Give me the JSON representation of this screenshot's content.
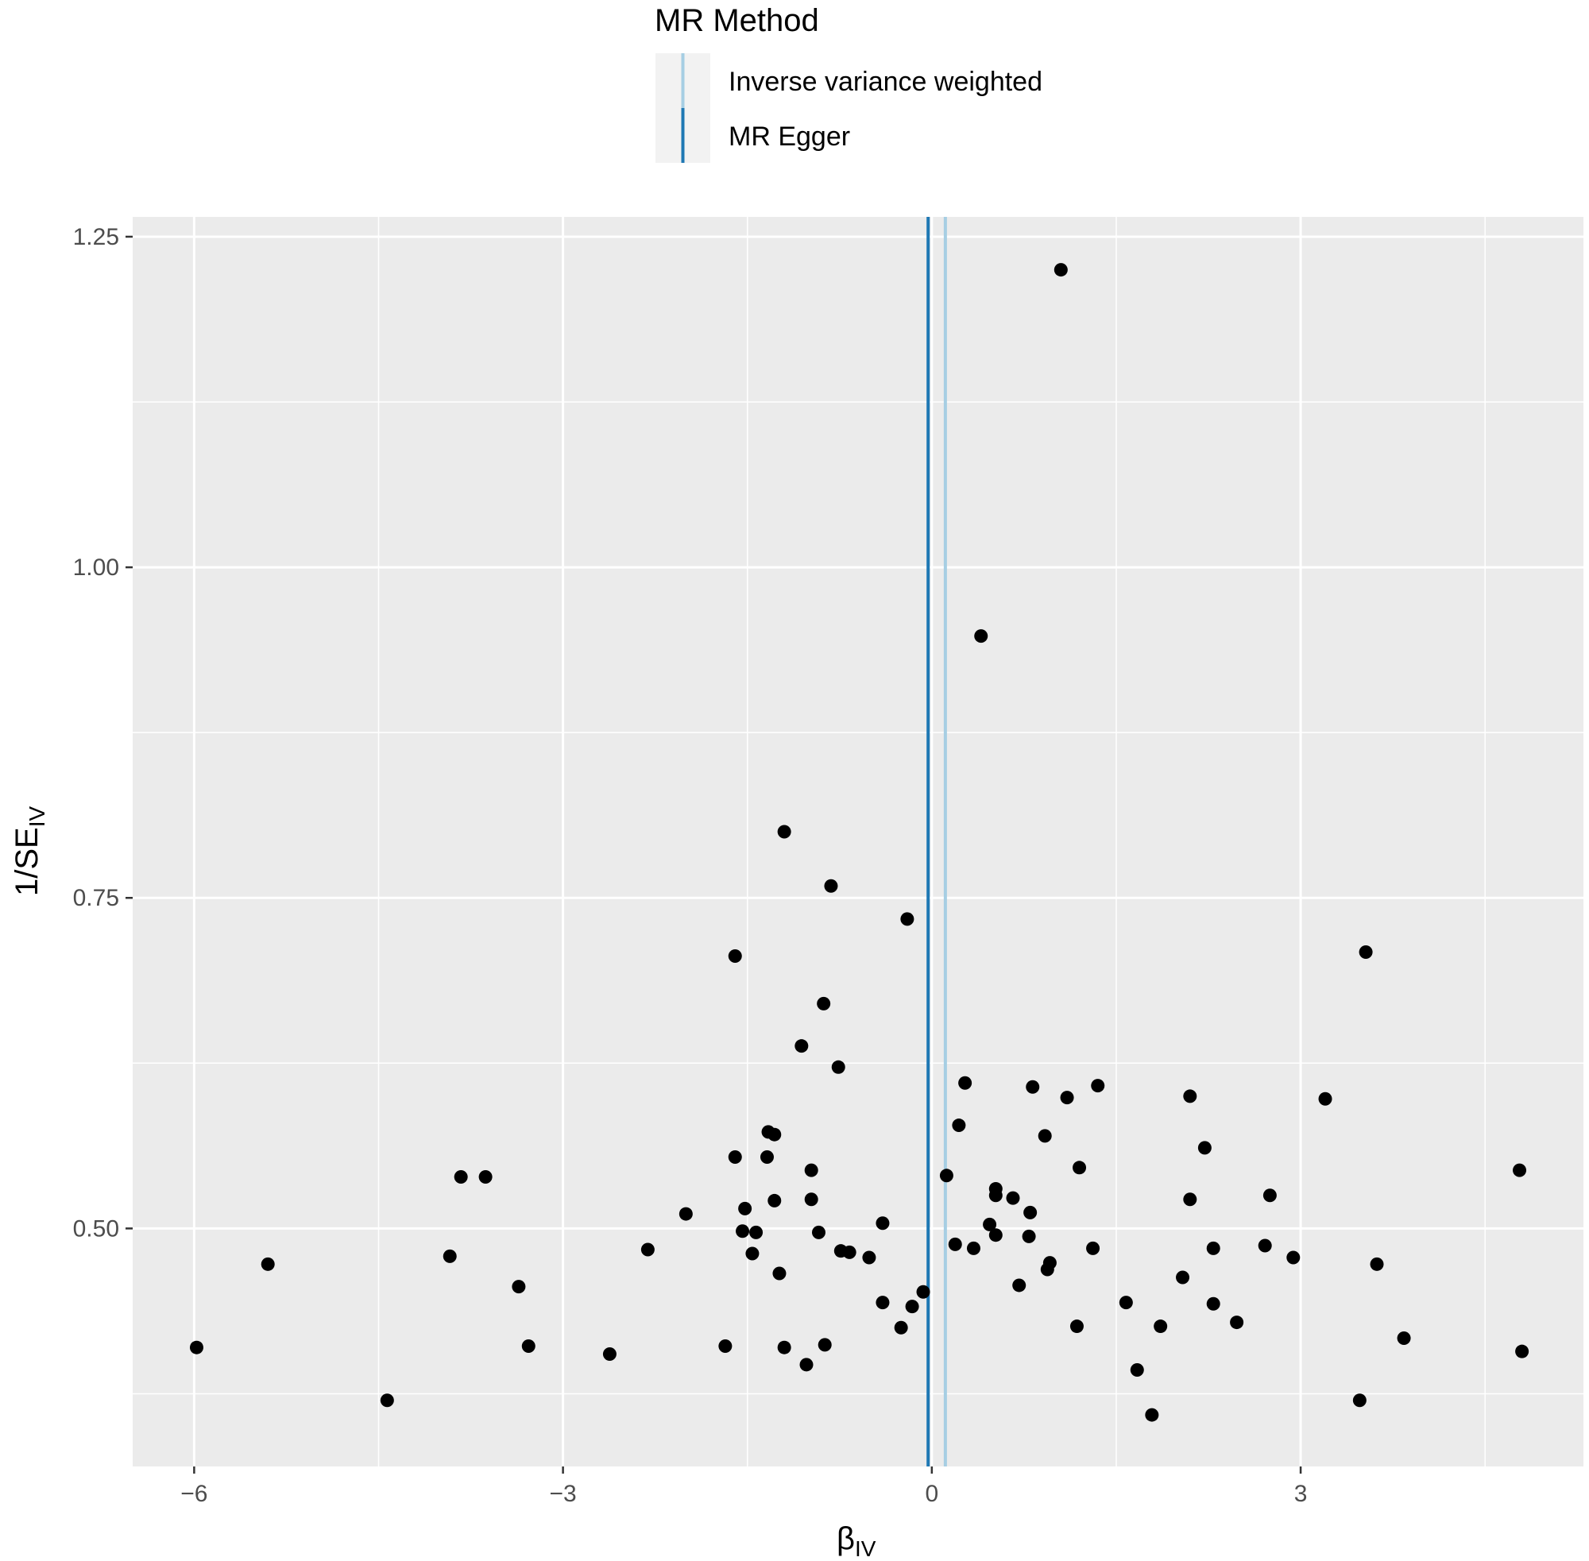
{
  "legend": {
    "title": "MR Method",
    "items": [
      {
        "label": "Inverse variance weighted",
        "color": "#a6cee3"
      },
      {
        "label": "MR Egger",
        "color": "#1f78b4"
      }
    ]
  },
  "chart_data": {
    "type": "scatter",
    "xlabel": {
      "main": "β",
      "sub": "IV"
    },
    "ylabel": {
      "main": "1/SE",
      "sub": "IV"
    },
    "xlim": [
      -6.5,
      5.3
    ],
    "ylim": [
      0.32,
      1.265
    ],
    "x_ticks": [
      -6,
      -3,
      0,
      3
    ],
    "x_tick_labels": [
      "−6",
      "−3",
      "0",
      "3"
    ],
    "y_ticks": [
      0.5,
      0.75,
      1.0,
      1.25
    ],
    "y_tick_labels": [
      "0.50",
      "0.75",
      "1.00",
      "1.25"
    ],
    "grid": true,
    "legend_position": "top",
    "background": "#ebebeb",
    "point_color": "#000000",
    "vlines": [
      {
        "name": "Inverse variance weighted",
        "x": 0.11,
        "color": "#a6cee3"
      },
      {
        "name": "MR Egger",
        "x": -0.03,
        "color": "#1f78b4"
      }
    ],
    "points": [
      {
        "x": 1.05,
        "y": 1.225
      },
      {
        "x": 0.4,
        "y": 0.948
      },
      {
        "x": -1.2,
        "y": 0.8
      },
      {
        "x": -0.82,
        "y": 0.759
      },
      {
        "x": -0.2,
        "y": 0.734
      },
      {
        "x": -1.6,
        "y": 0.706
      },
      {
        "x": 3.53,
        "y": 0.709
      },
      {
        "x": -0.88,
        "y": 0.67
      },
      {
        "x": -1.06,
        "y": 0.638
      },
      {
        "x": -0.76,
        "y": 0.622
      },
      {
        "x": 0.27,
        "y": 0.61
      },
      {
        "x": 0.82,
        "y": 0.607
      },
      {
        "x": 1.35,
        "y": 0.608
      },
      {
        "x": 1.1,
        "y": 0.599
      },
      {
        "x": 2.1,
        "y": 0.6
      },
      {
        "x": 3.2,
        "y": 0.598
      },
      {
        "x": 0.22,
        "y": 0.578
      },
      {
        "x": -1.33,
        "y": 0.573
      },
      {
        "x": -1.28,
        "y": 0.571
      },
      {
        "x": 0.92,
        "y": 0.57
      },
      {
        "x": 2.22,
        "y": 0.561
      },
      {
        "x": -1.6,
        "y": 0.554
      },
      {
        "x": -1.34,
        "y": 0.554
      },
      {
        "x": 1.2,
        "y": 0.546
      },
      {
        "x": -0.98,
        "y": 0.544
      },
      {
        "x": 4.78,
        "y": 0.544
      },
      {
        "x": -3.83,
        "y": 0.539
      },
      {
        "x": -3.63,
        "y": 0.539
      },
      {
        "x": 0.12,
        "y": 0.54
      },
      {
        "x": 0.52,
        "y": 0.53
      },
      {
        "x": 0.52,
        "y": 0.525
      },
      {
        "x": 2.75,
        "y": 0.525
      },
      {
        "x": 0.66,
        "y": 0.523
      },
      {
        "x": -1.28,
        "y": 0.521
      },
      {
        "x": -0.98,
        "y": 0.522
      },
      {
        "x": 2.1,
        "y": 0.522
      },
      {
        "x": -1.52,
        "y": 0.515
      },
      {
        "x": 0.8,
        "y": 0.512
      },
      {
        "x": -2.0,
        "y": 0.511
      },
      {
        "x": -0.4,
        "y": 0.504
      },
      {
        "x": 0.47,
        "y": 0.503
      },
      {
        "x": -1.54,
        "y": 0.498
      },
      {
        "x": -1.43,
        "y": 0.497
      },
      {
        "x": -0.92,
        "y": 0.497
      },
      {
        "x": 0.52,
        "y": 0.495
      },
      {
        "x": 0.79,
        "y": 0.494
      },
      {
        "x": 0.19,
        "y": 0.488
      },
      {
        "x": 0.34,
        "y": 0.485
      },
      {
        "x": 1.31,
        "y": 0.485
      },
      {
        "x": 2.29,
        "y": 0.485
      },
      {
        "x": 2.71,
        "y": 0.487
      },
      {
        "x": -2.31,
        "y": 0.484
      },
      {
        "x": -0.74,
        "y": 0.483
      },
      {
        "x": -0.67,
        "y": 0.482
      },
      {
        "x": -1.46,
        "y": 0.481
      },
      {
        "x": -3.92,
        "y": 0.479
      },
      {
        "x": -0.51,
        "y": 0.478
      },
      {
        "x": 2.94,
        "y": 0.478
      },
      {
        "x": 0.96,
        "y": 0.474
      },
      {
        "x": -5.4,
        "y": 0.473
      },
      {
        "x": 3.62,
        "y": 0.473
      },
      {
        "x": 0.94,
        "y": 0.469
      },
      {
        "x": -1.24,
        "y": 0.466
      },
      {
        "x": 2.04,
        "y": 0.463
      },
      {
        "x": 0.71,
        "y": 0.457
      },
      {
        "x": -3.36,
        "y": 0.456
      },
      {
        "x": -0.07,
        "y": 0.452
      },
      {
        "x": -0.4,
        "y": 0.444
      },
      {
        "x": 1.58,
        "y": 0.444
      },
      {
        "x": 2.29,
        "y": 0.443
      },
      {
        "x": -0.16,
        "y": 0.441
      },
      {
        "x": 2.48,
        "y": 0.429
      },
      {
        "x": 1.18,
        "y": 0.426
      },
      {
        "x": 1.86,
        "y": 0.426
      },
      {
        "x": -0.25,
        "y": 0.425
      },
      {
        "x": 3.84,
        "y": 0.417
      },
      {
        "x": -5.98,
        "y": 0.41
      },
      {
        "x": -3.28,
        "y": 0.411
      },
      {
        "x": -1.68,
        "y": 0.411
      },
      {
        "x": -1.2,
        "y": 0.41
      },
      {
        "x": -0.87,
        "y": 0.412
      },
      {
        "x": -2.62,
        "y": 0.405
      },
      {
        "x": 4.8,
        "y": 0.407
      },
      {
        "x": -1.02,
        "y": 0.397
      },
      {
        "x": 1.67,
        "y": 0.393
      },
      {
        "x": -4.43,
        "y": 0.37
      },
      {
        "x": 3.48,
        "y": 0.37
      },
      {
        "x": 1.79,
        "y": 0.359
      }
    ]
  }
}
